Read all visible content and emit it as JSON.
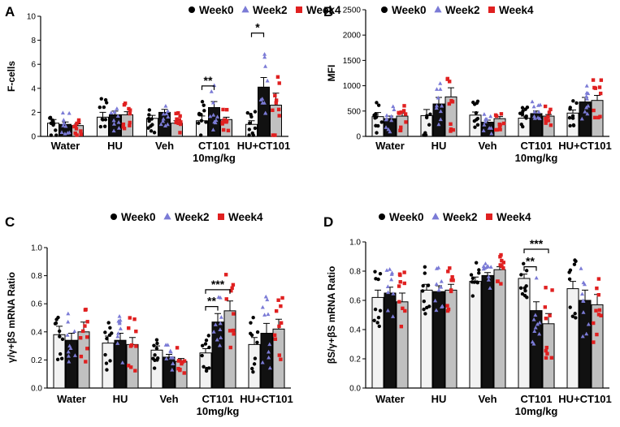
{
  "figure": {
    "colors": {
      "week0_bar": "#f2f2f2",
      "week2_bar": "#111111",
      "week4_bar": "#c0c0c0",
      "week0_dot": "#000000",
      "week2_dot": "#7b7bd6",
      "week4_dot": "#e02020",
      "axis": "#000000"
    },
    "legend_markers": [
      "circle",
      "triangle",
      "square"
    ]
  },
  "chart_data": [
    {
      "panel": "A",
      "type": "bar",
      "title": "",
      "ylabel": "F-cells",
      "xlabel": "",
      "ylim": [
        0,
        10
      ],
      "yticks": [
        "0",
        "2",
        "4",
        "6",
        "8",
        "10"
      ],
      "ytick_values": [
        0,
        2,
        4,
        6,
        8,
        10
      ],
      "categories": [
        "Water",
        "HU",
        "Veh",
        "CT101",
        "HU+CT101"
      ],
      "category_sublabel": {
        "index": 3,
        "text": "10mg/kg"
      },
      "legend": [
        "Week0",
        "Week2",
        "Week4"
      ],
      "series": [
        {
          "name": "Week0",
          "values": [
            1.1,
            1.6,
            1.5,
            1.3,
            1.0
          ],
          "errors": [
            0.3,
            0.4,
            0.25,
            0.4,
            0.3
          ]
        },
        {
          "name": "Week2",
          "values": [
            1.0,
            1.8,
            2.0,
            2.4,
            4.1
          ],
          "errors": [
            0.2,
            0.3,
            0.25,
            0.5,
            0.8
          ]
        },
        {
          "name": "Week4",
          "values": [
            0.9,
            1.8,
            1.1,
            1.4,
            2.6
          ],
          "errors": [
            0.15,
            0.25,
            0.2,
            0.2,
            1.0
          ]
        }
      ],
      "significance": [
        {
          "group": 3,
          "from": "Week0",
          "to": "Week2",
          "label": "**",
          "level": 4.2
        },
        {
          "group": 4,
          "from": "Week0",
          "to": "Week2",
          "label": "*",
          "level": 8.6
        }
      ]
    },
    {
      "panel": "B",
      "type": "bar",
      "title": "",
      "ylabel": "MFI",
      "xlabel": "",
      "ylim": [
        0,
        2500
      ],
      "yticks": [
        "0",
        "500",
        "1000",
        "1500",
        "2000",
        "2500"
      ],
      "ytick_values": [
        0,
        500,
        1000,
        1500,
        2000,
        2500
      ],
      "categories": [
        "Water",
        "HU",
        "Veh",
        "CT101",
        "HU+CT101"
      ],
      "category_sublabel": {
        "index": 3,
        "text": "10mg/kg"
      },
      "legend": [
        "Week0",
        "Week2",
        "Week4"
      ],
      "series": [
        {
          "name": "Week0",
          "values": [
            390,
            410,
            420,
            360,
            460
          ],
          "errors": [
            80,
            120,
            60,
            40,
            60
          ]
        },
        {
          "name": "Week2",
          "values": [
            350,
            640,
            280,
            450,
            680
          ],
          "errors": [
            50,
            130,
            40,
            50,
            90
          ]
        },
        {
          "name": "Week4",
          "values": [
            400,
            780,
            350,
            400,
            710
          ],
          "errors": [
            60,
            180,
            40,
            30,
            100
          ]
        }
      ],
      "significance": []
    },
    {
      "panel": "C",
      "type": "bar",
      "title": "",
      "ylabel": "γ/γ+βS mRNA Ratio",
      "xlabel": "",
      "ylim": [
        0,
        1.0
      ],
      "yticks": [
        "0.0",
        "0.2",
        "0.4",
        "0.6",
        "0.8",
        "1.0"
      ],
      "ytick_values": [
        0,
        0.2,
        0.4,
        0.6,
        0.8,
        1.0
      ],
      "categories": [
        "Water",
        "HU",
        "Veh",
        "CT101",
        "HU+CT101"
      ],
      "category_sublabel": {
        "index": 3,
        "text": "10mg/kg"
      },
      "legend": [
        "Week0",
        "Week2",
        "Week4"
      ],
      "series": [
        {
          "name": "Week0",
          "values": [
            0.38,
            0.32,
            0.27,
            0.25,
            0.31
          ],
          "errors": [
            0.06,
            0.05,
            0.03,
            0.03,
            0.05
          ]
        },
        {
          "name": "Week2",
          "values": [
            0.34,
            0.34,
            0.22,
            0.47,
            0.39
          ],
          "errors": [
            0.05,
            0.05,
            0.02,
            0.06,
            0.07
          ]
        },
        {
          "name": "Week4",
          "values": [
            0.4,
            0.31,
            0.19,
            0.55,
            0.42
          ],
          "errors": [
            0.07,
            0.05,
            0.02,
            0.07,
            0.07
          ]
        }
      ],
      "significance": [
        {
          "group": 3,
          "from": "Week0",
          "to": "Week2",
          "label": "**",
          "level": 0.58
        },
        {
          "group": 3,
          "from": "Week0",
          "to": "Week4",
          "label": "***",
          "level": 0.7
        }
      ]
    },
    {
      "panel": "D",
      "type": "bar",
      "title": "",
      "ylabel": "βS/γ+βS mRNA Ratio",
      "xlabel": "",
      "ylim": [
        0,
        1.0
      ],
      "yticks": [
        "0.0",
        "0.2",
        "0.4",
        "0.6",
        "0.8",
        "1.0"
      ],
      "ytick_values": [
        0,
        0.2,
        0.4,
        0.6,
        0.8,
        1.0
      ],
      "categories": [
        "Water",
        "HU",
        "Veh",
        "CT101",
        "HU+CT101"
      ],
      "category_sublabel": {
        "index": 3,
        "text": "10mg/kg"
      },
      "legend": [
        "Week0",
        "Week2",
        "Week4"
      ],
      "series": [
        {
          "name": "Week0",
          "values": [
            0.62,
            0.67,
            0.73,
            0.75,
            0.68
          ],
          "errors": [
            0.05,
            0.04,
            0.03,
            0.03,
            0.05
          ]
        },
        {
          "name": "Week2",
          "values": [
            0.65,
            0.66,
            0.77,
            0.53,
            0.6
          ],
          "errors": [
            0.04,
            0.04,
            0.02,
            0.06,
            0.07
          ]
        },
        {
          "name": "Week4",
          "values": [
            0.59,
            0.67,
            0.81,
            0.44,
            0.57
          ],
          "errors": [
            0.06,
            0.04,
            0.02,
            0.07,
            0.07
          ]
        }
      ],
      "significance": [
        {
          "group": 3,
          "from": "Week0",
          "to": "Week2",
          "label": "**",
          "level": 0.83
        },
        {
          "group": 3,
          "from": "Week0",
          "to": "Week4",
          "label": "***",
          "level": 0.95
        }
      ]
    }
  ]
}
